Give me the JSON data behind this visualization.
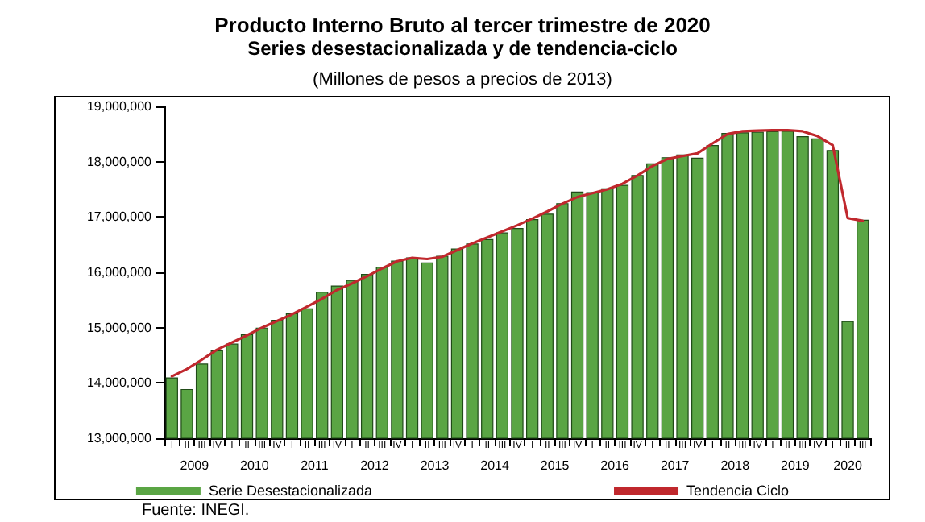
{
  "chart_data": {
    "type": "bar",
    "title": "Producto Interno Bruto al tercer trimestre de 2020",
    "subtitle": "Series desestacionalizada y de tendencia-ciclo",
    "annotations": [
      "(Millones de pesos a precios de 2013)",
      "Fuente: INEGI.",
      "2009",
      "2010",
      "2011",
      "2012",
      "2013",
      "2014",
      "2015",
      "2016",
      "2017",
      "2018",
      "2019",
      "2020"
    ],
    "categories": [
      "I",
      "II",
      "III",
      "IV",
      "I",
      "II",
      "III",
      "IV",
      "I",
      "II",
      "III",
      "IV",
      "I",
      "II",
      "III",
      "IV",
      "I",
      "II",
      "III",
      "IV",
      "I",
      "II",
      "III",
      "IV",
      "I",
      "II",
      "III",
      "IV",
      "I",
      "II",
      "III",
      "IV",
      "I",
      "II",
      "III",
      "IV",
      "I",
      "II",
      "III",
      "IV",
      "I",
      "II",
      "III",
      "IV",
      "I",
      "II",
      "III"
    ],
    "series": [
      {
        "name": "Serie Desestacionalizada",
        "color": "#5aa544",
        "values": [
          14100000,
          13890000,
          14350000,
          14590000,
          14710000,
          14880000,
          15000000,
          15140000,
          15260000,
          15350000,
          15650000,
          15760000,
          15860000,
          15970000,
          16100000,
          16210000,
          16270000,
          16180000,
          16300000,
          16430000,
          16520000,
          16600000,
          16720000,
          16800000,
          16960000,
          17060000,
          17250000,
          17460000,
          17450000,
          17520000,
          17580000,
          17760000,
          17970000,
          18080000,
          18130000,
          18070000,
          18300000,
          18520000,
          18530000,
          18540000,
          18550000,
          18560000,
          18460000,
          18420000,
          18210000,
          15120000,
          16950000
        ]
      },
      {
        "name": "Tendencia Ciclo",
        "type": "line",
        "color": "#c0282d",
        "values": [
          14120000,
          14250000,
          14420000,
          14600000,
          14730000,
          14860000,
          15000000,
          15120000,
          15240000,
          15380000,
          15520000,
          15680000,
          15800000,
          15930000,
          16070000,
          16200000,
          16260000,
          16240000,
          16280000,
          16400000,
          16520000,
          16630000,
          16740000,
          16850000,
          16970000,
          17100000,
          17240000,
          17360000,
          17430000,
          17500000,
          17600000,
          17750000,
          17920000,
          18050000,
          18100000,
          18150000,
          18330000,
          18500000,
          18550000,
          18560000,
          18570000,
          18570000,
          18550000,
          18460000,
          18300000,
          16980000,
          16930000
        ]
      }
    ],
    "ylim": [
      13000000,
      19000000
    ],
    "yticks": [
      {
        "value": 13000000,
        "label": "13,000,000"
      },
      {
        "value": 14000000,
        "label": "14,000,000"
      },
      {
        "value": 15000000,
        "label": "15,000,000"
      },
      {
        "value": 16000000,
        "label": "16,000,000"
      },
      {
        "value": 17000000,
        "label": "17,000,000"
      },
      {
        "value": 18000000,
        "label": "18,000,000"
      },
      {
        "value": 19000000,
        "label": "19,000,000"
      }
    ],
    "grid": false,
    "legend": "bottom",
    "marker": "none",
    "line_style": "solid"
  }
}
